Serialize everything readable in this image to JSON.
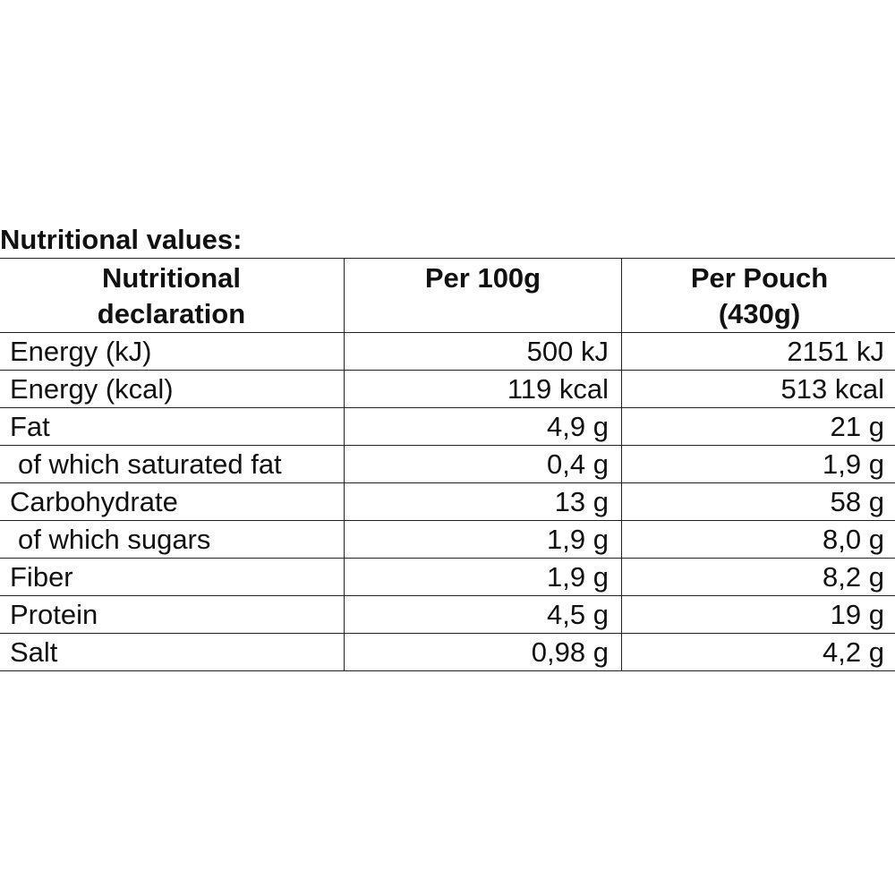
{
  "heading": "Nutritional values:",
  "columns": {
    "col1": [
      "Nutritional",
      "declaration"
    ],
    "col2": [
      "Per 100g"
    ],
    "col3": [
      "Per Pouch",
      "(430g)"
    ]
  },
  "rows": [
    {
      "label": "Energy (kJ)",
      "per100": "500 kJ",
      "perPouch": "2151 kJ",
      "indent": false
    },
    {
      "label": "Energy (kcal)",
      "per100": "119 kcal",
      "perPouch": "513 kcal",
      "indent": false
    },
    {
      "label": "Fat",
      "per100": "4,9 g",
      "perPouch": "21 g",
      "indent": false
    },
    {
      "label": "of which saturated fat",
      "per100": "0,4 g",
      "perPouch": "1,9 g",
      "indent": true
    },
    {
      "label": "Carbohydrate",
      "per100": "13 g",
      "perPouch": "58 g",
      "indent": false
    },
    {
      "label": "of which sugars",
      "per100": "1,9 g",
      "perPouch": "8,0 g",
      "indent": true
    },
    {
      "label": "Fiber",
      "per100": "1,9 g",
      "perPouch": "8,2 g",
      "indent": false
    },
    {
      "label": "Protein",
      "per100": "4,5 g",
      "perPouch": "19 g",
      "indent": false
    },
    {
      "label": "Salt",
      "per100": "0,98 g",
      "perPouch": "4,2 g",
      "indent": false
    }
  ]
}
